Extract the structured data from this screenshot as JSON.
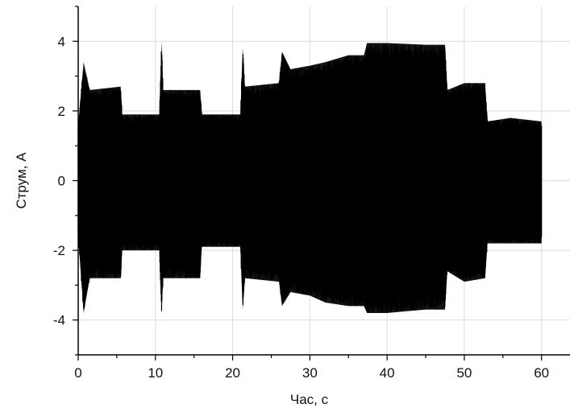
{
  "chart_data": {
    "type": "line",
    "title": "",
    "xlabel": "Час, с",
    "ylabel": "Струм, А",
    "xlim": [
      0,
      64
    ],
    "ylim": [
      -5,
      5
    ],
    "x_ticks": [
      0,
      10,
      20,
      30,
      40,
      50,
      60
    ],
    "y_ticks": [
      -4,
      -2,
      0,
      2,
      4
    ],
    "x_tick_labels": [
      "0",
      "10",
      "20",
      "30",
      "40",
      "50",
      "60"
    ],
    "y_tick_labels": [
      "-4",
      "-2",
      "0",
      "2",
      "4"
    ],
    "grid": true,
    "legend": "none",
    "series_color": "#000000",
    "series": [
      {
        "signal": "oscillating current",
        "x": [
          0,
          0.7,
          1.5,
          5.5,
          5.7,
          10.5,
          10.8,
          11.0,
          15.8,
          16.0,
          21.0,
          21.3,
          21.6,
          26.0,
          26.4,
          27.5,
          30.0,
          32.0,
          35.0,
          37.0,
          37.4,
          40.0,
          45.0,
          47.5,
          47.8,
          50.0,
          52.7,
          53.0,
          56.0,
          60.0
        ],
        "upper": [
          1.6,
          3.4,
          2.6,
          2.7,
          1.9,
          1.9,
          4.0,
          2.6,
          2.6,
          1.9,
          1.9,
          3.8,
          2.7,
          2.8,
          3.7,
          3.2,
          3.3,
          3.4,
          3.6,
          3.6,
          3.95,
          3.95,
          3.9,
          3.9,
          2.6,
          2.8,
          2.8,
          1.7,
          1.8,
          1.7
        ],
        "lower": [
          -1.6,
          -3.8,
          -2.8,
          -2.8,
          -2.0,
          -2.0,
          -3.8,
          -2.8,
          -2.8,
          -1.9,
          -1.9,
          -3.7,
          -2.8,
          -2.9,
          -3.6,
          -3.2,
          -3.3,
          -3.5,
          -3.6,
          -3.6,
          -3.8,
          -3.8,
          -3.7,
          -3.7,
          -2.6,
          -2.9,
          -2.8,
          -1.8,
          -1.8,
          -1.8
        ]
      }
    ]
  }
}
